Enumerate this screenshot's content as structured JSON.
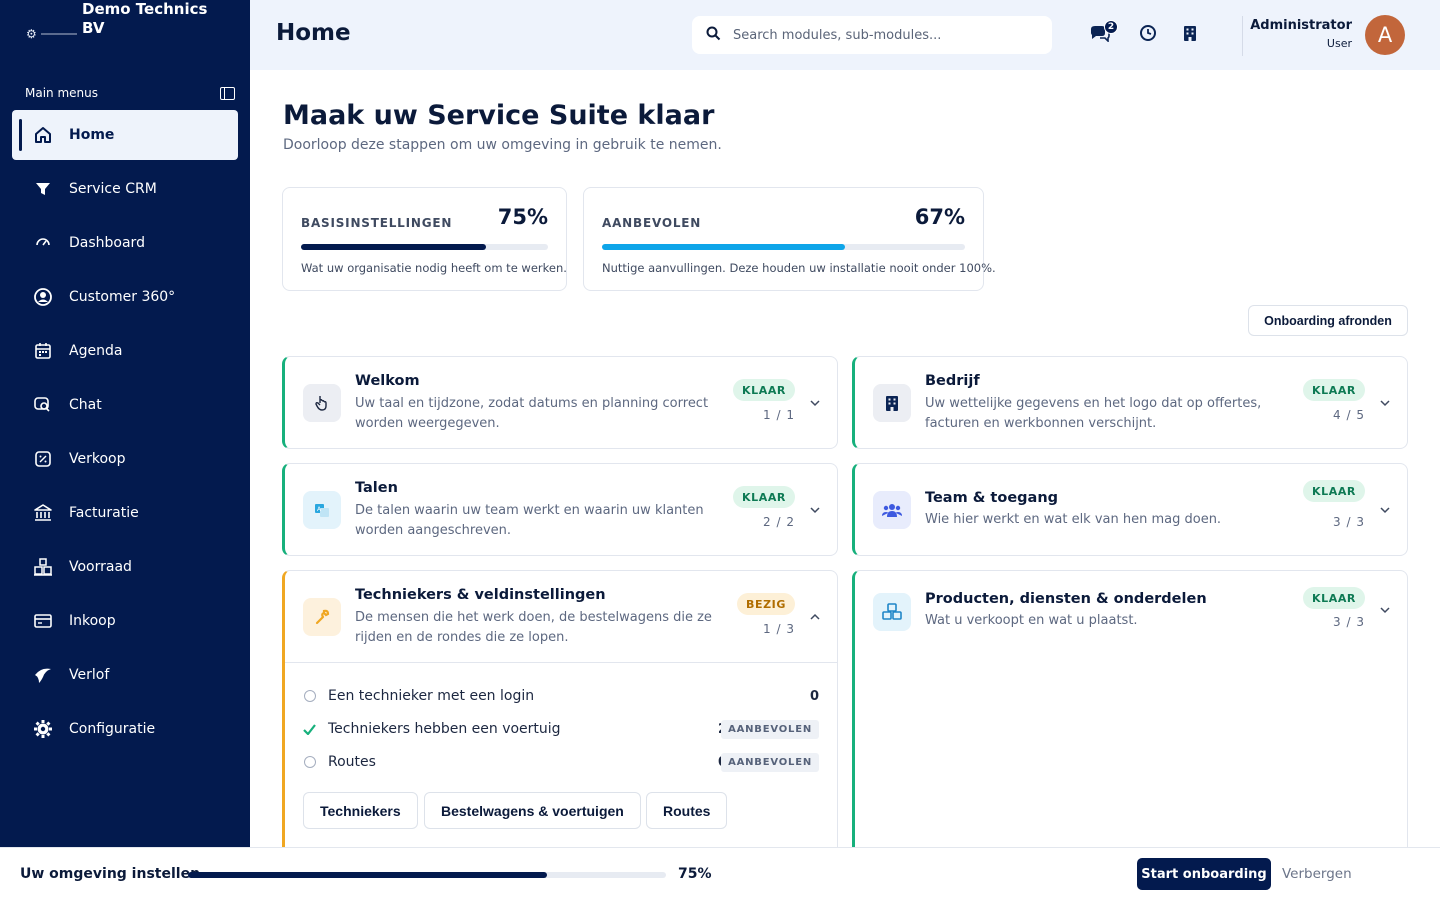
{
  "sidebar": {
    "brand_name": "Demo Technics BV",
    "section_label": "Main menus",
    "items": [
      {
        "label": "Home",
        "icon": "home-icon",
        "active": true
      },
      {
        "label": "Service CRM",
        "icon": "filter-icon"
      },
      {
        "label": "Dashboard",
        "icon": "gauge-icon"
      },
      {
        "label": "Customer 360°",
        "icon": "user-circle-icon"
      },
      {
        "label": "Agenda",
        "icon": "calendar-icon"
      },
      {
        "label": "Chat",
        "icon": "chat-icon"
      },
      {
        "label": "Verkoop",
        "icon": "percent-icon"
      },
      {
        "label": "Facturatie",
        "icon": "bank-icon"
      },
      {
        "label": "Voorraad",
        "icon": "warehouse-icon"
      },
      {
        "label": "Inkoop",
        "icon": "card-icon"
      },
      {
        "label": "Verlof",
        "icon": "plane-icon"
      },
      {
        "label": "Configuratie",
        "icon": "gear-icon"
      }
    ]
  },
  "header": {
    "title": "Home",
    "search_placeholder": "Search modules, sub-modules...",
    "chat_badge": "2",
    "user_name": "Administrator",
    "user_role": "User",
    "avatar_letter": "A"
  },
  "main": {
    "heading": "Maak uw Service Suite klaar",
    "subheading": "Doorloop deze stappen om uw omgeving in gebruik te nemen.",
    "progress_cards": [
      {
        "label": "BASISINSTELLINGEN",
        "percent": "75%",
        "value": 75,
        "description": "Wat uw organisatie nodig heeft om te werken.",
        "color": "#031a4e"
      },
      {
        "label": "AANBEVOLEN",
        "percent": "67%",
        "value": 67,
        "description": "Nuttige aanvullingen. Deze houden uw installatie nooit onder 100%.",
        "color": "#0ea5e9"
      }
    ],
    "finish_button": "Onboarding afronden",
    "sections": {
      "welkom": {
        "title": "Welkom",
        "description": "Uw taal en tijdzone, zodat datums en planning correct worden weergegeven.",
        "status": "KLAAR",
        "count": "1 / 1"
      },
      "talen": {
        "title": "Talen",
        "description": "De talen waarin uw team werkt en waarin uw klanten worden aangeschreven.",
        "status": "KLAAR",
        "count": "2 / 2"
      },
      "technici": {
        "title": "Techniekers & veldinstellingen",
        "description": "De mensen die het werk doen, de bestelwagens die ze rijden en de rondes die ze lopen.",
        "status": "BEZIG",
        "count": "1 / 3",
        "tasks": [
          {
            "label": "Een technieker met een login",
            "value": "0",
            "done": false,
            "tag": ""
          },
          {
            "label": "Techniekers hebben een voertuig",
            "value": "2",
            "done": true,
            "tag": "AANBEVOLEN"
          },
          {
            "label": "Routes",
            "value": "0",
            "done": false,
            "tag": "AANBEVOLEN"
          }
        ],
        "buttons": [
          "Techniekers",
          "Bestelwagens & voertuigen",
          "Routes"
        ]
      },
      "bedrijf": {
        "title": "Bedrijf",
        "description": "Uw wettelijke gegevens en het logo dat op offertes, facturen en werkbonnen verschijnt.",
        "status": "KLAAR",
        "count": "4 / 5"
      },
      "team": {
        "title": "Team & toegang",
        "description": "Wie hier werkt en wat elk van hen mag doen.",
        "status": "KLAAR",
        "count": "3 / 3"
      },
      "producten": {
        "title": "Producten, diensten & onderdelen",
        "description": "Wat u verkoopt en wat u plaatst.",
        "status": "KLAAR",
        "count": "3 / 3"
      }
    }
  },
  "bottom_bar": {
    "label": "Uw omgeving instellen",
    "percent": "75%",
    "value": 75,
    "start_button": "Start onboarding",
    "hide_link": "Verbergen"
  }
}
